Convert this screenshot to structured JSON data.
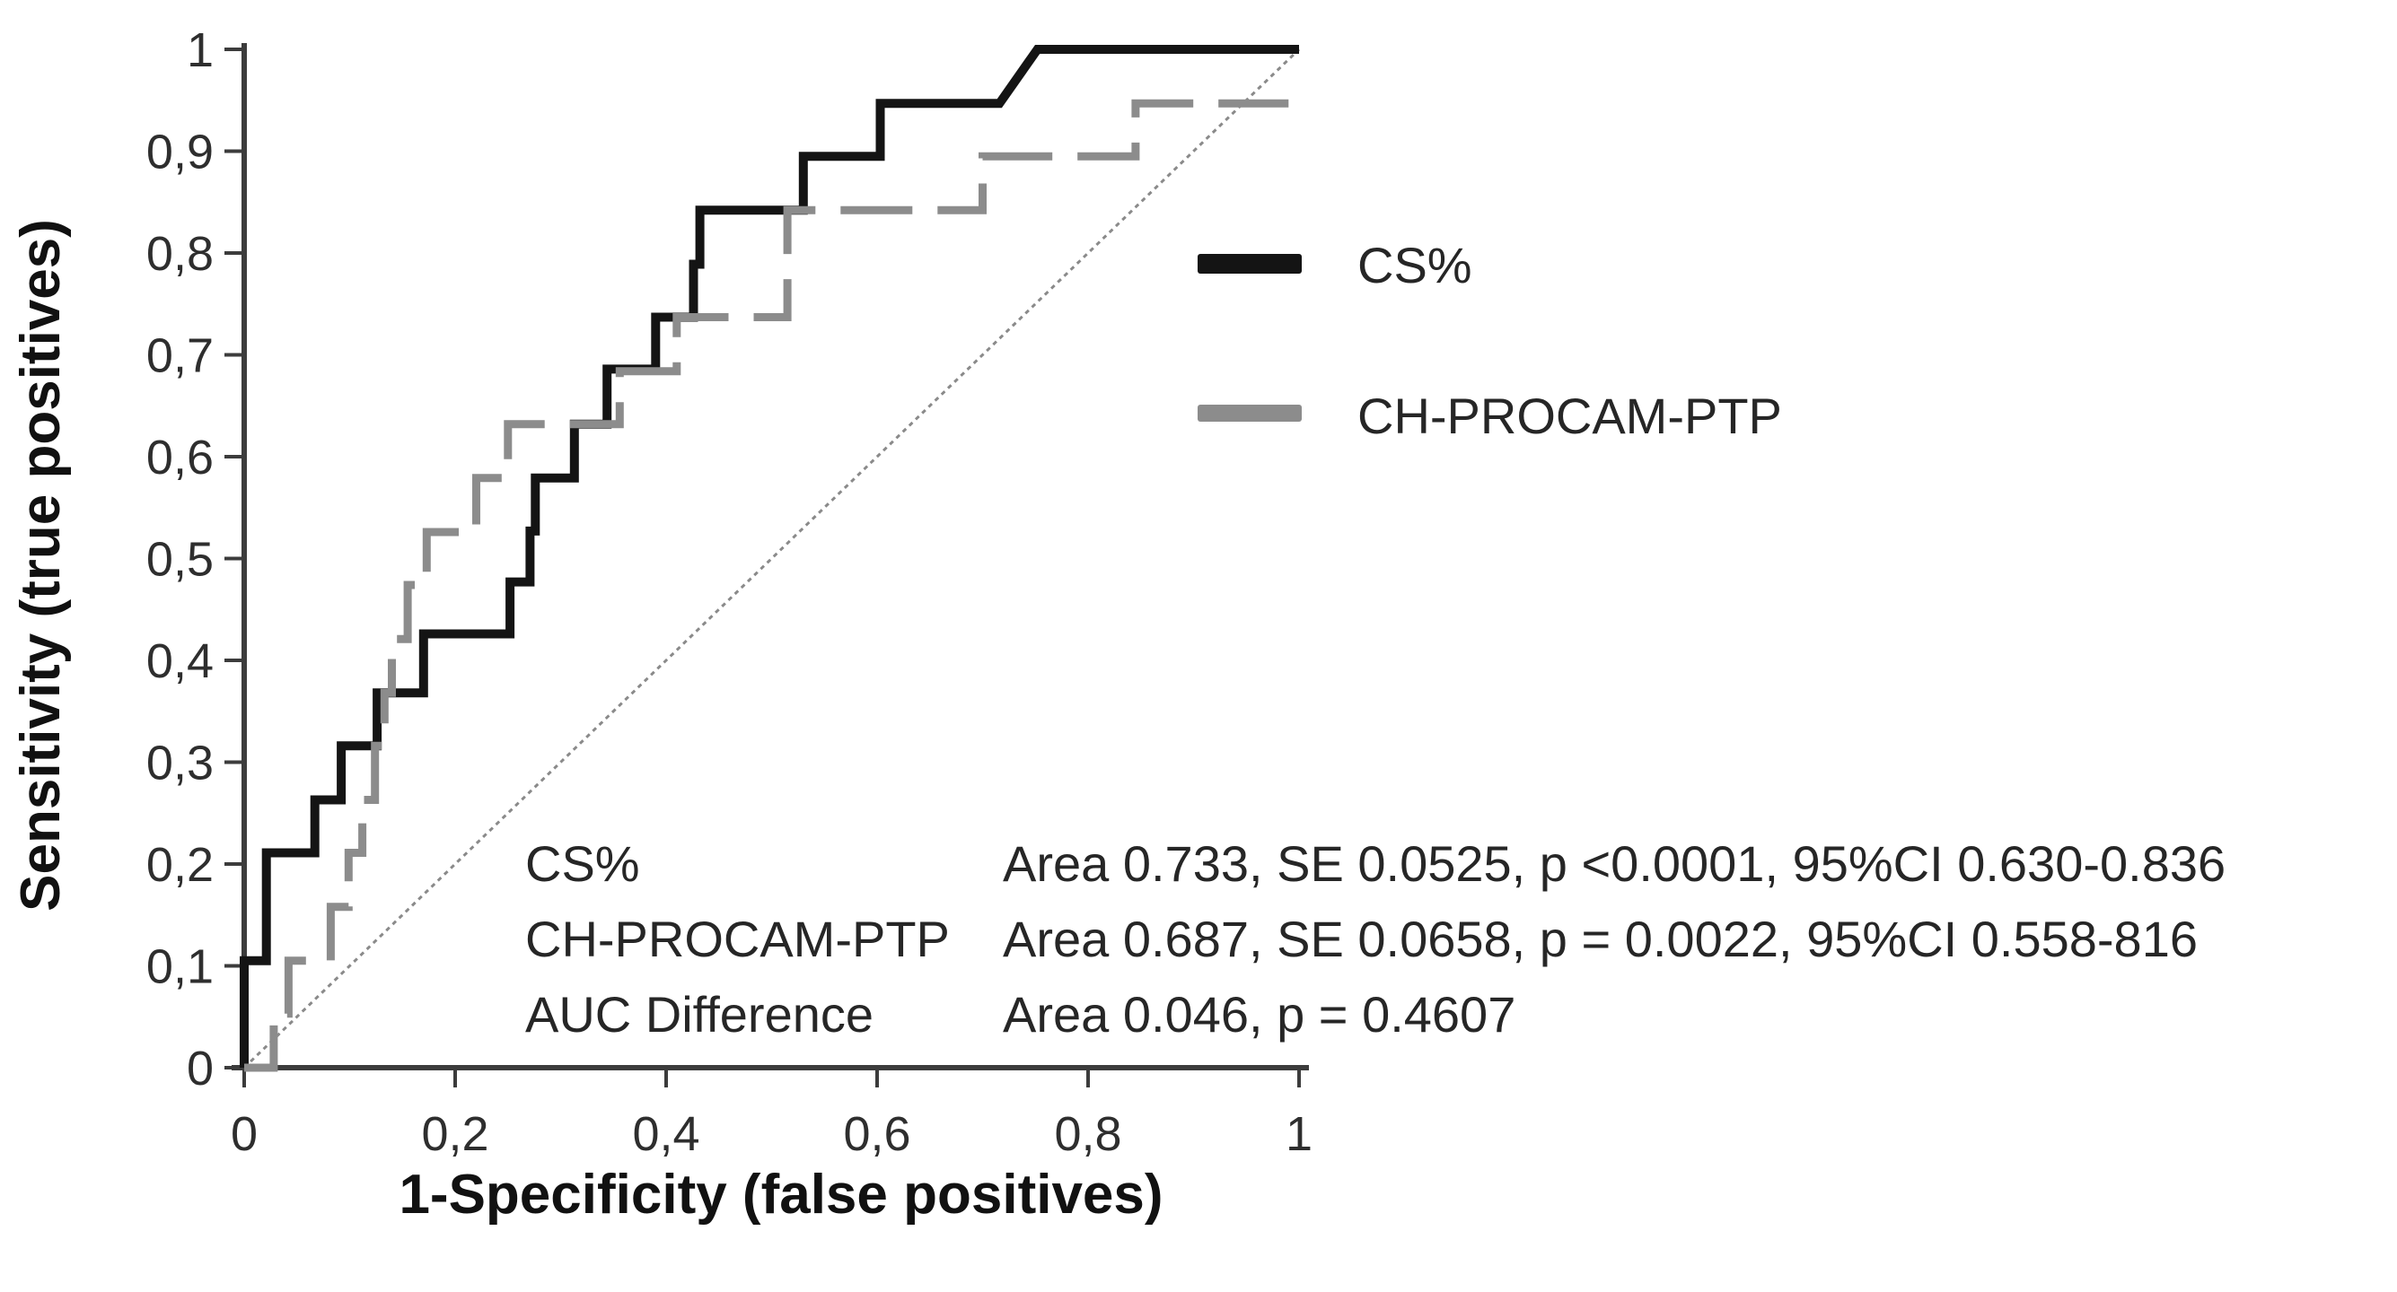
{
  "chart_data": {
    "type": "line",
    "subtype": "roc-step-curves",
    "title": "",
    "xlabel": "1-Specificity (false positives)",
    "ylabel": "Sensitivity (true positives)",
    "xlim": [
      0,
      1
    ],
    "ylim": [
      0,
      1
    ],
    "grid": false,
    "decimal_separator": ",",
    "x_ticks": [
      {
        "value": 0,
        "label": "0"
      },
      {
        "value": 0.2,
        "label": "0,2"
      },
      {
        "value": 0.4,
        "label": "0,4"
      },
      {
        "value": 0.6,
        "label": "0,6"
      },
      {
        "value": 0.8,
        "label": "0,8"
      },
      {
        "value": 1,
        "label": "1"
      }
    ],
    "y_ticks": [
      {
        "value": 0,
        "label": "0"
      },
      {
        "value": 0.1,
        "label": "0,1"
      },
      {
        "value": 0.2,
        "label": "0,2"
      },
      {
        "value": 0.3,
        "label": "0,3"
      },
      {
        "value": 0.4,
        "label": "0,4"
      },
      {
        "value": 0.5,
        "label": "0,5"
      },
      {
        "value": 0.6,
        "label": "0,6"
      },
      {
        "value": 0.7,
        "label": "0,7"
      },
      {
        "value": 0.8,
        "label": "0,8"
      },
      {
        "value": 0.9,
        "label": "0,9"
      },
      {
        "value": 1,
        "label": "1"
      }
    ],
    "reference_line": {
      "from": [
        0,
        0
      ],
      "to": [
        1,
        1
      ],
      "color": "#8a8a8a",
      "width": 3,
      "dash": "5 5"
    },
    "legend": {
      "position": "upper-right-inside",
      "entries": [
        {
          "name": "CS%",
          "color": "#141414",
          "style": "solid"
        },
        {
          "name": "CH-PROCAM-PTP",
          "color": "#8c8c8c",
          "style": "dashed"
        }
      ]
    },
    "series": [
      {
        "name": "CS%",
        "color": "#141414",
        "width": 10,
        "dash": null,
        "points": [
          [
            0,
            0
          ],
          [
            0,
            0.105
          ],
          [
            0.021,
            0.105
          ],
          [
            0.021,
            0.211
          ],
          [
            0.067,
            0.211
          ],
          [
            0.067,
            0.263
          ],
          [
            0.092,
            0.263
          ],
          [
            0.092,
            0.316
          ],
          [
            0.126,
            0.316
          ],
          [
            0.126,
            0.368
          ],
          [
            0.17,
            0.368
          ],
          [
            0.17,
            0.426
          ],
          [
            0.252,
            0.426
          ],
          [
            0.252,
            0.477
          ],
          [
            0.271,
            0.477
          ],
          [
            0.271,
            0.527
          ],
          [
            0.276,
            0.527
          ],
          [
            0.276,
            0.579
          ],
          [
            0.313,
            0.579
          ],
          [
            0.313,
            0.632
          ],
          [
            0.344,
            0.632
          ],
          [
            0.344,
            0.686
          ],
          [
            0.39,
            0.686
          ],
          [
            0.39,
            0.737
          ],
          [
            0.426,
            0.737
          ],
          [
            0.426,
            0.789
          ],
          [
            0.432,
            0.789
          ],
          [
            0.432,
            0.842
          ],
          [
            0.53,
            0.842
          ],
          [
            0.53,
            0.895
          ],
          [
            0.603,
            0.895
          ],
          [
            0.603,
            0.947
          ],
          [
            0.716,
            0.947
          ],
          [
            0.752,
            1.0
          ],
          [
            1.0,
            1.0
          ]
        ]
      },
      {
        "name": "CH-PROCAM-PTP",
        "color": "#8c8c8c",
        "width": 9,
        "dash": "80 28",
        "points": [
          [
            0,
            0
          ],
          [
            0.028,
            0
          ],
          [
            0.028,
            0.053
          ],
          [
            0.042,
            0.053
          ],
          [
            0.042,
            0.105
          ],
          [
            0.082,
            0.105
          ],
          [
            0.082,
            0.158
          ],
          [
            0.099,
            0.158
          ],
          [
            0.099,
            0.211
          ],
          [
            0.112,
            0.211
          ],
          [
            0.112,
            0.263
          ],
          [
            0.124,
            0.263
          ],
          [
            0.124,
            0.316
          ],
          [
            0.133,
            0.316
          ],
          [
            0.133,
            0.368
          ],
          [
            0.14,
            0.368
          ],
          [
            0.14,
            0.421
          ],
          [
            0.155,
            0.421
          ],
          [
            0.155,
            0.474
          ],
          [
            0.173,
            0.474
          ],
          [
            0.173,
            0.526
          ],
          [
            0.22,
            0.526
          ],
          [
            0.22,
            0.579
          ],
          [
            0.25,
            0.579
          ],
          [
            0.25,
            0.632
          ],
          [
            0.356,
            0.632
          ],
          [
            0.356,
            0.684
          ],
          [
            0.41,
            0.684
          ],
          [
            0.41,
            0.737
          ],
          [
            0.515,
            0.737
          ],
          [
            0.515,
            0.842
          ],
          [
            0.7,
            0.842
          ],
          [
            0.7,
            0.895
          ],
          [
            0.845,
            0.895
          ],
          [
            0.845,
            0.947
          ],
          [
            0.99,
            0.947
          ]
        ]
      }
    ],
    "stats": [
      {
        "label": "CS%",
        "value": "Area 0.733, SE 0.0525, p <0.0001, 95%CI 0.630-0.836"
      },
      {
        "label": "CH-PROCAM-PTP",
        "value": "Area 0.687, SE 0.0658, p = 0.0022, 95%CI 0.558-816"
      },
      {
        "label": "AUC Difference",
        "value": "Area 0.046, p = 0.4607"
      }
    ]
  },
  "colors": {
    "axis": "#3c3c3c",
    "tick_text": "#2e2e2e",
    "background": "#ffffff",
    "cs_curve": "#141414",
    "procam_curve": "#8c8c8c",
    "diagonal": "#8a8a8a"
  }
}
